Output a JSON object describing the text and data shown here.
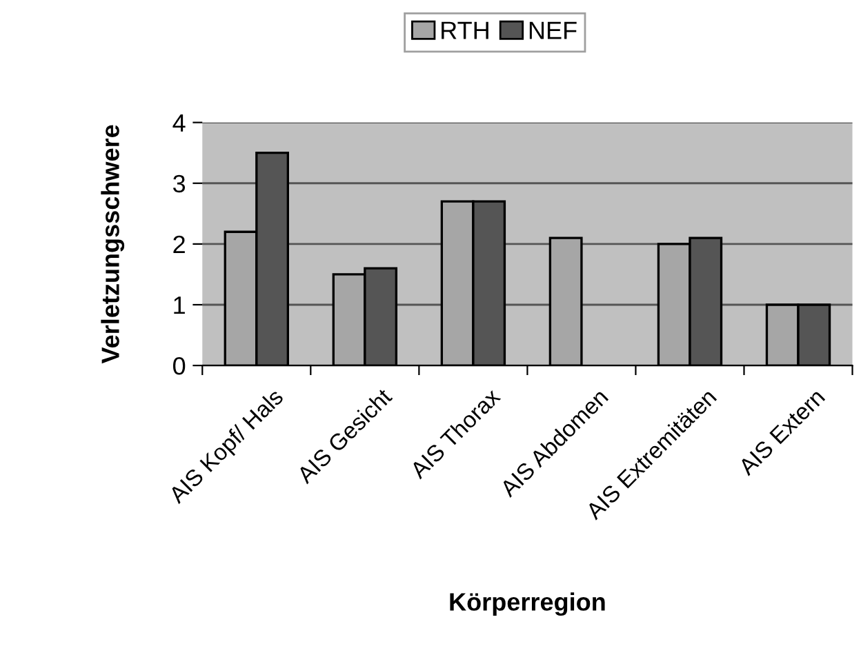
{
  "chart_data": {
    "type": "bar",
    "xlabel": "Körperregion",
    "ylabel": "Verletzungsschwere",
    "categories": [
      "AIS Kopf/ Hals",
      "AIS Gesicht",
      "AIS Thorax",
      "AIS Abdomen",
      "AIS Extremitäten",
      "AIS Extern"
    ],
    "series": [
      {
        "name": "RTH",
        "color": "#a6a6a6",
        "values": [
          2.2,
          1.5,
          2.7,
          2.1,
          2.0,
          1.0
        ]
      },
      {
        "name": "NEF",
        "color": "#555555",
        "values": [
          3.5,
          1.6,
          2.7,
          null,
          2.1,
          1.0
        ]
      }
    ],
    "ylim": [
      0,
      4
    ],
    "yticks": [
      0,
      1,
      2,
      3,
      4
    ],
    "grid": "y",
    "legend": "top"
  }
}
